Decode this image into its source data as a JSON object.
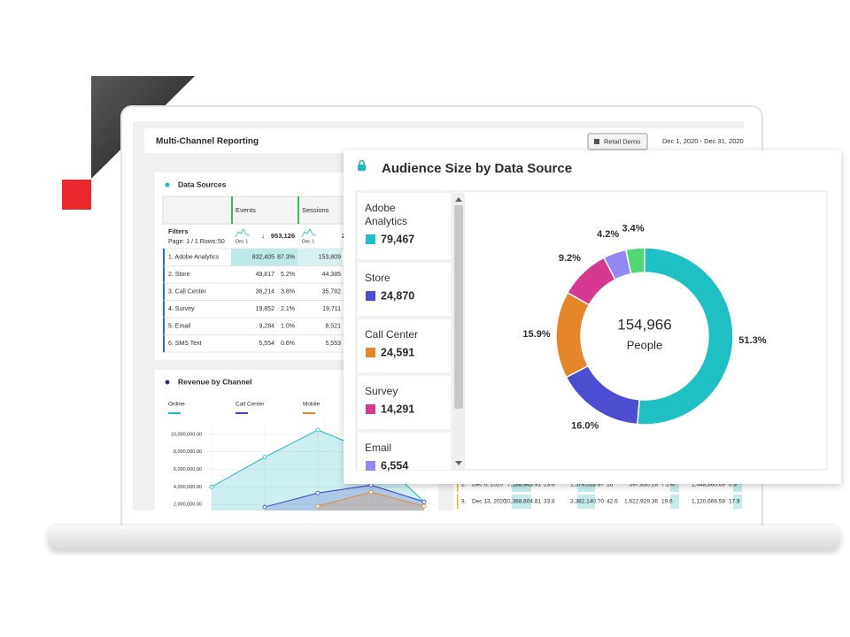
{
  "header": {
    "title": "Multi-Channel Reporting",
    "button": "Retail Demo",
    "date_range": "Dec 1, 2020 - Dec 31, 2020"
  },
  "data_sources": {
    "title": "Data Sources",
    "columns": [
      "Events",
      "Sessions"
    ],
    "filters": "Filters",
    "page": "Page: 1 / 1 Rows:",
    "rows_per_page": "50",
    "date": [
      "Dec 1",
      "Dec 1"
    ],
    "events_total": "953,126",
    "sessions_total": "2",
    "rows": [
      [
        "1. Adobe Analytics",
        "832,405",
        "87.3%",
        "153,809"
      ],
      [
        "2. Store",
        "49,817",
        "5.2%",
        "44,385"
      ],
      [
        "3. Call Center",
        "36,214",
        "3.8%",
        "35,782"
      ],
      [
        "4. Survey",
        "19,852",
        "2.1%",
        "19,711"
      ],
      [
        "5. Email",
        "9,284",
        "1.0%",
        "8,521"
      ],
      [
        "6. SMS Text",
        "5,554",
        "0.6%",
        "5,553"
      ]
    ]
  },
  "revenue_table": {
    "rows": [
      [
        "2.",
        "Dec 6, 2020",
        "7,188,943.91",
        "23.6",
        "1,579,553.97",
        "16",
        "597,830.28",
        "7.2%",
        "1,448,860.69",
        "6.9"
      ],
      [
        "3.",
        "Dec 13, 2020",
        "10,368,604.81",
        "33.8",
        "3,382,140.70",
        "42.6",
        "1,622,929.36",
        "19.6",
        "1,120,666.58",
        "17.9"
      ]
    ]
  },
  "chart_data": [
    {
      "type": "pie",
      "title": "Audience Size by Data Source",
      "categories": [
        "Adobe Analytics",
        "Store",
        "Call Center",
        "Survey",
        "Email",
        null
      ],
      "values": [
        51.3,
        16.0,
        15.9,
        9.2,
        4.2,
        3.4
      ],
      "value_labels": [
        "51.3%",
        "16.0%",
        "15.9%",
        "9.2%",
        "4.2%",
        "3.4%"
      ],
      "counts": [
        79467,
        24870,
        24591,
        14291,
        6554,
        null
      ],
      "count_labels": [
        "79,467",
        "24,870",
        "24,591",
        "14,291",
        "6,554",
        null
      ],
      "colors": [
        "#1fc0c4",
        "#4d4dd2",
        "#e6862a",
        "#d6398f",
        "#9387f1",
        "#4fd873"
      ],
      "center": {
        "value": 154966,
        "label": "154,966"
      },
      "center_caption": "People"
    },
    {
      "type": "line",
      "title": "Revenue by Channel",
      "categories": [
        null,
        null,
        null,
        null,
        null
      ],
      "series": [
        {
          "name": "Online",
          "color": "#1fb8bd",
          "values": [
            4000000,
            7400000,
            10500000,
            8000000,
            2300000
          ]
        },
        {
          "name": "Call Center",
          "color": "#4040c8",
          "values": [
            null,
            1700000,
            3300000,
            4200000,
            2300000
          ]
        },
        {
          "name": "Mobile",
          "color": "#e6862a",
          "values": [
            null,
            null,
            1800000,
            3400000,
            1800000
          ]
        }
      ],
      "ylim": [
        1200000,
        10600000
      ],
      "yticks": [
        {
          "value": 2000000,
          "label": "2,000,000.00"
        },
        {
          "value": 4000000,
          "label": "4,000,000.00"
        },
        {
          "value": 6000000,
          "label": "6,000,000.00"
        },
        {
          "value": 8000000,
          "label": "8,000,000.00"
        },
        {
          "value": 10000000,
          "label": "10,000,000.00"
        }
      ],
      "grid": true
    }
  ]
}
